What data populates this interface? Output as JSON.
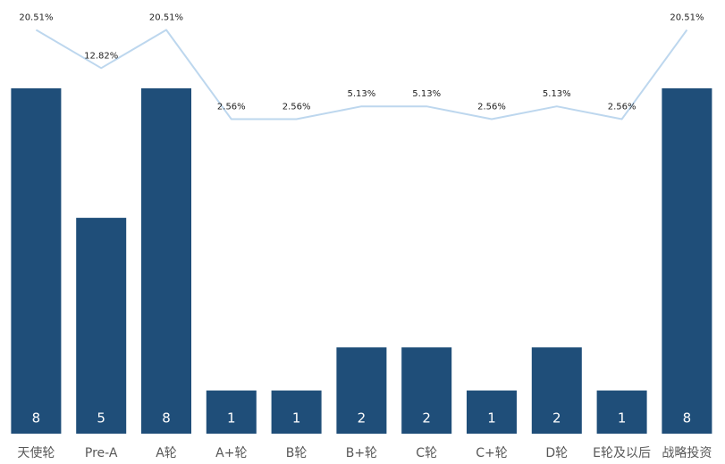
{
  "chart_data": {
    "type": "bar",
    "categories": [
      "天使轮",
      "Pre-A",
      "A轮",
      "A+轮",
      "B轮",
      "B+轮",
      "C轮",
      "C+轮",
      "D轮",
      "E轮及以后",
      "战略投资"
    ],
    "series": [
      {
        "type": "bar",
        "values": [
          8,
          5,
          8,
          1,
          1,
          2,
          2,
          1,
          2,
          1,
          8
        ],
        "color": "#1f4e79"
      },
      {
        "type": "line",
        "values": [
          20.51,
          12.82,
          20.51,
          2.56,
          2.56,
          5.13,
          5.13,
          2.56,
          5.13,
          2.56,
          20.51
        ],
        "labels": [
          "20.51%",
          "12.82%",
          "20.51%",
          "2.56%",
          "2.56%",
          "5.13%",
          "5.13%",
          "2.56%",
          "5.13%",
          "2.56%",
          "20.51%"
        ],
        "color": "#bdd7ee"
      }
    ],
    "title": "",
    "xlabel": "",
    "ylabel": "",
    "legend": "none",
    "grid": false
  }
}
